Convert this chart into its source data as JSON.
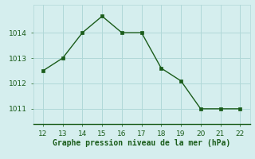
{
  "x": [
    12,
    13,
    14,
    15,
    16,
    17,
    18,
    19,
    20,
    21,
    22
  ],
  "y": [
    1012.5,
    1013.0,
    1014.0,
    1014.65,
    1014.0,
    1014.0,
    1012.6,
    1012.1,
    1011.0,
    1011.0,
    1011.0
  ],
  "line_color": "#1a5c1a",
  "marker": "s",
  "marker_size": 2.5,
  "linewidth": 1.0,
  "background_color": "#d5eeee",
  "grid_color": "#b0d8d8",
  "xlabel": "Graphe pression niveau de la mer (hPa)",
  "xlabel_color": "#1a5c1a",
  "xlabel_fontsize": 7,
  "tick_color": "#1a5c1a",
  "tick_fontsize": 6.5,
  "xlim": [
    11.5,
    22.5
  ],
  "ylim": [
    1010.4,
    1015.1
  ],
  "yticks": [
    1011,
    1012,
    1013,
    1014
  ],
  "xticks": [
    12,
    13,
    14,
    15,
    16,
    17,
    18,
    19,
    20,
    21,
    22
  ]
}
